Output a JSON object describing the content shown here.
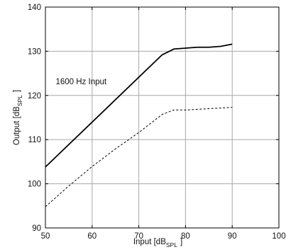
{
  "chart_data": {
    "type": "line",
    "annotation": "1600 Hz Input",
    "xlabel": {
      "main": "Input [dB",
      "sub": "SPL",
      "close": "]"
    },
    "ylabel": {
      "main": "Output [dB",
      "sub": "SPL",
      "close": "]"
    },
    "xlim": [
      50,
      100
    ],
    "ylim": [
      90,
      140
    ],
    "xticks": [
      50,
      60,
      70,
      80,
      90,
      100
    ],
    "yticks": [
      90,
      100,
      110,
      120,
      130,
      140
    ],
    "grid": true,
    "series": [
      {
        "style": "solid",
        "color": "#000000",
        "x": [
          50,
          75,
          77.5,
          80,
          82.5,
          85,
          87.5,
          90
        ],
        "y": [
          103.8,
          129.2,
          130.5,
          130.7,
          130.9,
          130.9,
          131.1,
          131.6
        ]
      },
      {
        "style": "dashed",
        "color": "#000000",
        "x": [
          50,
          55,
          60,
          65,
          70,
          75,
          77.5,
          80,
          85,
          90
        ],
        "y": [
          94.8,
          99.5,
          103.9,
          107.9,
          111.6,
          115.7,
          116.7,
          116.7,
          117.0,
          117.3
        ]
      }
    ]
  }
}
